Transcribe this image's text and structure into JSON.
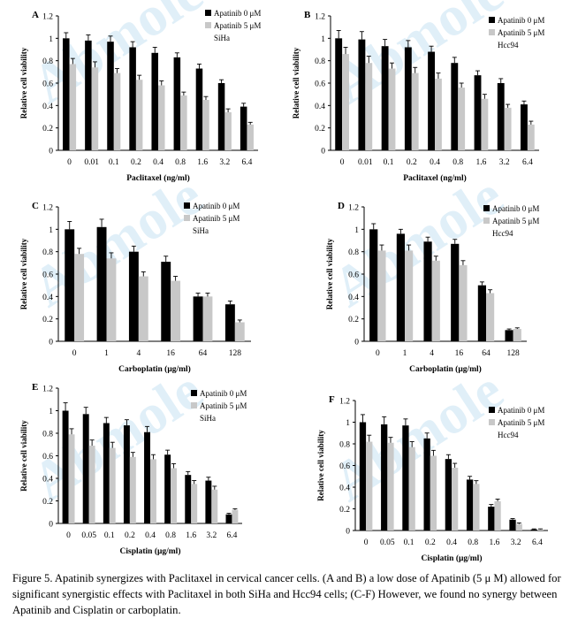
{
  "figure": {
    "caption": "Figure 5. Apatinib synergizes with Paclitaxel in cervical cancer cells. (A and B) a low dose of Apatinib (5 μ M) allowed for significant synergistic effects with Paclitaxel in both SiHa and Hcc94 cells; (C-F) However, we found no synergy between Apatinib and Cisplatin or carboplatin.",
    "watermark": "Abmole"
  },
  "colors": {
    "apatinib0": "#000000",
    "apatinib5": "#c8c8c8",
    "axis": "#000000"
  },
  "chart_data": [
    {
      "type": "bar",
      "panel": "A",
      "cell": "SiHa",
      "categories": [
        "0",
        "0.01",
        "0.1",
        "0.2",
        "0.4",
        "0.8",
        "1.6",
        "3.2",
        "6.4"
      ],
      "xlabel": "Paclitaxel (ng/ml)",
      "ylabel": "Relative cell viability",
      "ylim": [
        0,
        1.2
      ],
      "yticks": [
        "0",
        "0.2",
        "0.4",
        "0.6",
        "0.8",
        "1",
        "1.2"
      ],
      "legend_position": "top-right",
      "grid": false,
      "series": [
        {
          "name": "Apatinib 0 μM",
          "values": [
            1.0,
            0.98,
            0.97,
            0.92,
            0.87,
            0.83,
            0.73,
            0.6,
            0.39
          ],
          "errors": [
            0.05,
            0.05,
            0.05,
            0.05,
            0.05,
            0.04,
            0.04,
            0.03,
            0.03
          ]
        },
        {
          "name": "Apatinib 5 μM",
          "values": [
            0.77,
            0.74,
            0.69,
            0.63,
            0.58,
            0.49,
            0.45,
            0.34,
            0.23
          ],
          "errors": [
            0.05,
            0.05,
            0.04,
            0.04,
            0.04,
            0.03,
            0.03,
            0.03,
            0.02
          ]
        }
      ]
    },
    {
      "type": "bar",
      "panel": "B",
      "cell": "Hcc94",
      "categories": [
        "0",
        "0.01",
        "0.1",
        "0.2",
        "0.4",
        "0.8",
        "1.6",
        "3.2",
        "6.4"
      ],
      "xlabel": "Paclitaxel (ng/ml)",
      "ylabel": "Relative cell viability",
      "ylim": [
        0,
        1.2
      ],
      "yticks": [
        "0",
        "0.2",
        "0.4",
        "0.6",
        "0.8",
        "1",
        "1.2"
      ],
      "legend_position": "top-right",
      "grid": false,
      "series": [
        {
          "name": "Apatinib 0 μM",
          "values": [
            1.0,
            0.99,
            0.93,
            0.92,
            0.88,
            0.78,
            0.67,
            0.6,
            0.41
          ],
          "errors": [
            0.07,
            0.07,
            0.06,
            0.06,
            0.05,
            0.05,
            0.04,
            0.04,
            0.03
          ]
        },
        {
          "name": "Apatinib 5 μM",
          "values": [
            0.86,
            0.78,
            0.73,
            0.69,
            0.64,
            0.56,
            0.46,
            0.38,
            0.23
          ],
          "errors": [
            0.06,
            0.06,
            0.05,
            0.05,
            0.05,
            0.04,
            0.04,
            0.03,
            0.03
          ]
        }
      ]
    },
    {
      "type": "bar",
      "panel": "C",
      "cell": "SiHa",
      "categories": [
        "0",
        "1",
        "4",
        "16",
        "64",
        "128"
      ],
      "xlabel": "Carboplatin (μg/ml)",
      "ylabel": "Relative cell viability",
      "ylim": [
        0,
        1.2
      ],
      "yticks": [
        "0",
        "0.2",
        "0.4",
        "0.6",
        "0.8",
        "1",
        "1.2"
      ],
      "legend_position": "top-right",
      "grid": false,
      "series": [
        {
          "name": "Apatinib 0 μM",
          "values": [
            1.0,
            1.02,
            0.8,
            0.71,
            0.4,
            0.33
          ],
          "errors": [
            0.07,
            0.07,
            0.05,
            0.05,
            0.03,
            0.03
          ]
        },
        {
          "name": "Apatinib 5 μM",
          "values": [
            0.78,
            0.74,
            0.58,
            0.54,
            0.4,
            0.17
          ],
          "errors": [
            0.05,
            0.05,
            0.04,
            0.04,
            0.03,
            0.02
          ]
        }
      ]
    },
    {
      "type": "bar",
      "panel": "D",
      "cell": "Hcc94",
      "categories": [
        "0",
        "1",
        "4",
        "16",
        "64",
        "128"
      ],
      "xlabel": "Carboplatin (μg/ml)",
      "ylabel": "Relative cell viability",
      "ylim": [
        0,
        1.2
      ],
      "yticks": [
        "0",
        "0.2",
        "0.4",
        "0.6",
        "0.8",
        "1",
        "1.2"
      ],
      "legend_position": "top-right",
      "grid": false,
      "series": [
        {
          "name": "Apatinib 0 μM",
          "values": [
            1.0,
            0.96,
            0.89,
            0.87,
            0.5,
            0.1
          ],
          "errors": [
            0.05,
            0.04,
            0.04,
            0.04,
            0.03,
            0.01
          ]
        },
        {
          "name": "Apatinib 5 μM",
          "values": [
            0.81,
            0.81,
            0.72,
            0.68,
            0.43,
            0.11
          ],
          "errors": [
            0.05,
            0.05,
            0.04,
            0.04,
            0.03,
            0.01
          ]
        }
      ]
    },
    {
      "type": "bar",
      "panel": "E",
      "cell": "SiHa",
      "categories": [
        "0",
        "0.05",
        "0.1",
        "0.2",
        "0.4",
        "0.8",
        "1.6",
        "3.2",
        "6.4"
      ],
      "xlabel": "Cisplatin (μg/ml)",
      "ylabel": "Relative cell viability",
      "ylim": [
        0,
        1.2
      ],
      "yticks": [
        "0",
        "0.2",
        "0.4",
        "0.6",
        "0.8",
        "1",
        "1.2"
      ],
      "legend_position": "top-right",
      "grid": false,
      "series": [
        {
          "name": "Apatinib 0 μM",
          "values": [
            1.0,
            0.97,
            0.89,
            0.87,
            0.81,
            0.61,
            0.43,
            0.38,
            0.08
          ],
          "errors": [
            0.07,
            0.06,
            0.05,
            0.05,
            0.05,
            0.04,
            0.03,
            0.03,
            0.01
          ]
        },
        {
          "name": "Apatinib 5 μM",
          "values": [
            0.79,
            0.69,
            0.67,
            0.59,
            0.57,
            0.49,
            0.35,
            0.3,
            0.12
          ],
          "errors": [
            0.05,
            0.05,
            0.05,
            0.04,
            0.04,
            0.04,
            0.03,
            0.03,
            0.01
          ]
        }
      ]
    },
    {
      "type": "bar",
      "panel": "F",
      "cell": "Hcc94",
      "categories": [
        "0",
        "0.05",
        "0.1",
        "0.2",
        "0.4",
        "0.8",
        "1.6",
        "3.2",
        "6.4"
      ],
      "xlabel": "Cisplatin (μg/ml)",
      "ylabel": "Relative cell viability",
      "ylim": [
        0,
        1.2
      ],
      "yticks": [
        "0",
        "0.2",
        "0.4",
        "0.6",
        "0.8",
        "1",
        "1.2"
      ],
      "legend_position": "top-right",
      "grid": false,
      "series": [
        {
          "name": "Apatinib 0 μM",
          "values": [
            1.0,
            0.98,
            0.97,
            0.85,
            0.66,
            0.47,
            0.22,
            0.1,
            0.01
          ],
          "errors": [
            0.07,
            0.07,
            0.06,
            0.05,
            0.04,
            0.03,
            0.02,
            0.01,
            0.005
          ]
        },
        {
          "name": "Apatinib 5 μM",
          "values": [
            0.82,
            0.81,
            0.77,
            0.69,
            0.58,
            0.43,
            0.27,
            0.06,
            0.01
          ],
          "errors": [
            0.06,
            0.05,
            0.05,
            0.05,
            0.04,
            0.03,
            0.02,
            0.01,
            0.005
          ]
        }
      ]
    }
  ]
}
